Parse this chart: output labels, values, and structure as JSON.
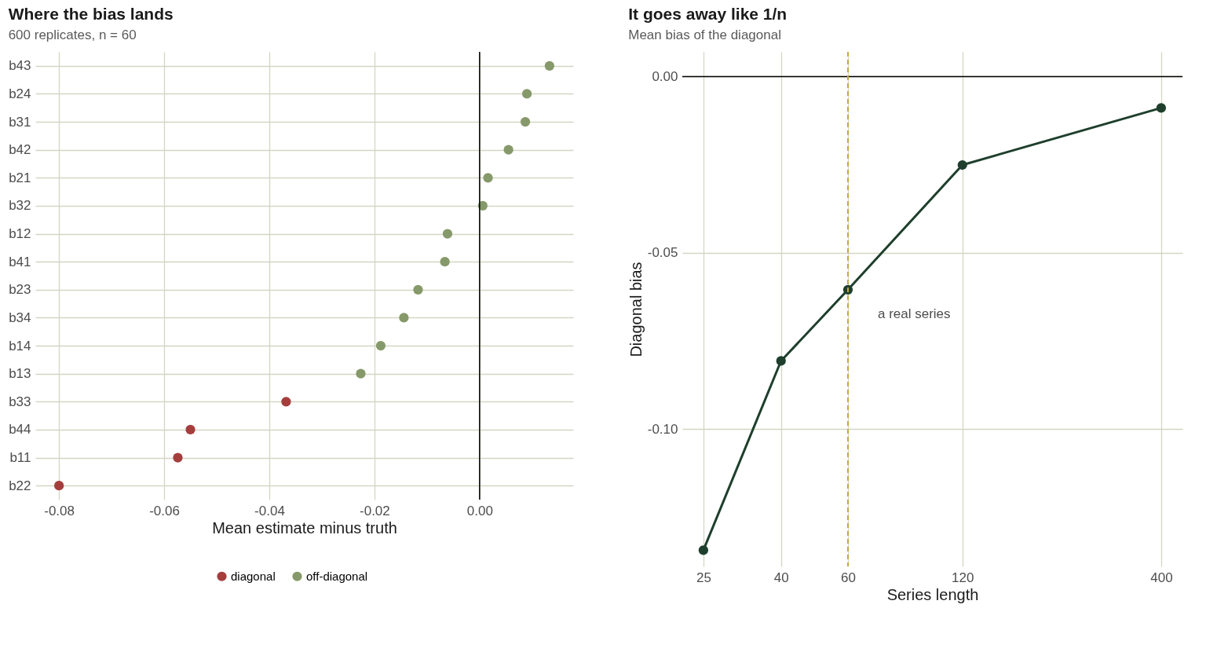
{
  "chart_data": [
    {
      "type": "scatter",
      "title": "Where the bias lands",
      "subtitle": "600 replicates, n = 60",
      "xlabel": "Mean estimate minus truth",
      "orientation": "horizontal",
      "categories": [
        "b43",
        "b24",
        "b31",
        "b42",
        "b21",
        "b32",
        "b12",
        "b41",
        "b23",
        "b34",
        "b14",
        "b13",
        "b33",
        "b44",
        "b11",
        "b22"
      ],
      "series": [
        {
          "name": "diagonal",
          "color": "#a63d3d",
          "values": [
            null,
            null,
            null,
            null,
            null,
            null,
            null,
            null,
            null,
            null,
            null,
            null,
            -0.0368,
            -0.055,
            -0.0574,
            -0.08
          ]
        },
        {
          "name": "off-diagonal",
          "color": "#86996a",
          "values": [
            0.0133,
            0.009,
            0.0087,
            0.0055,
            0.0016,
            0.0006,
            -0.0061,
            -0.0066,
            -0.0117,
            -0.0144,
            -0.0188,
            -0.0226,
            null,
            null,
            null,
            null
          ]
        }
      ],
      "xlim": [
        -0.0845,
        0.0178
      ],
      "xticks": [
        {
          "value": -0.08,
          "label": "-0.08"
        },
        {
          "value": -0.06,
          "label": "-0.06"
        },
        {
          "value": -0.04,
          "label": "-0.04"
        },
        {
          "value": -0.02,
          "label": "-0.02"
        },
        {
          "value": 0,
          "label": "0.00"
        }
      ],
      "ref_lines": [
        {
          "axis": "x",
          "value": 0,
          "color": "#000000"
        }
      ],
      "grid": true,
      "legend": "bottom",
      "marker": "circle"
    },
    {
      "type": "line",
      "title": "It goes away like 1/n",
      "subtitle": "Mean bias of the diagonal",
      "xlabel": "Series length",
      "ylabel": "Diagonal bias",
      "x": [
        25,
        40,
        60,
        120,
        400
      ],
      "series": [
        {
          "color": "#1e3f2c",
          "values": [
            -0.1344,
            -0.0807,
            -0.0605,
            -0.0251,
            -0.0089
          ]
        }
      ],
      "xlim": [
        22,
        455
      ],
      "xticks": [
        25,
        40,
        60,
        120,
        400
      ],
      "log": "x",
      "ylim": [
        -0.139,
        0.007
      ],
      "yticks": [
        {
          "value": -0.1,
          "label": "-0.10"
        },
        {
          "value": -0.05,
          "label": "-0.05"
        },
        {
          "value": 0,
          "label": "0.00"
        }
      ],
      "ref_lines": [
        {
          "axis": "y",
          "value": 0,
          "color": "#000000"
        },
        {
          "axis": "x",
          "value": 60,
          "color": "#c8a93a",
          "line_style": "dashed",
          "label": "a real series"
        }
      ],
      "grid": true,
      "marker": "circle",
      "line_style": "solid"
    }
  ]
}
